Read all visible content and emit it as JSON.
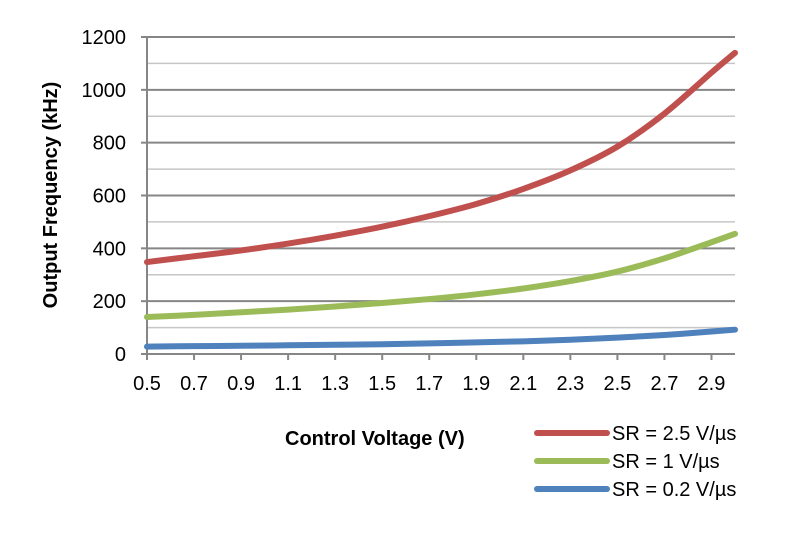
{
  "chart_data": {
    "type": "line",
    "xlabel": "Control Voltage (V)",
    "ylabel": "Output Frequency (kHz)",
    "xlim": [
      0.5,
      3.0
    ],
    "ylim": [
      0,
      1200
    ],
    "x_ticks": [
      "0.5",
      "0.7",
      "0.9",
      "1.1",
      "1.3",
      "1.5",
      "1.7",
      "1.9",
      "2.1",
      "2.3",
      "2.5",
      "2.7",
      "2.9"
    ],
    "y_ticks": [
      "0",
      "200",
      "400",
      "600",
      "800",
      "1000",
      "1200"
    ],
    "grid": true,
    "legend_position": "bottom-right",
    "series": [
      {
        "name": "SR = 2.5 V/µs",
        "color": "#c0504d",
        "x": [
          0.5,
          0.7,
          0.9,
          1.1,
          1.3,
          1.5,
          1.7,
          1.9,
          2.1,
          2.3,
          2.5,
          2.7,
          2.9,
          3.0
        ],
        "y": [
          348,
          370,
          392,
          418,
          448,
          482,
          522,
          568,
          625,
          695,
          785,
          910,
          1065,
          1140
        ]
      },
      {
        "name": "SR = 1 V/µs",
        "color": "#9bbb59",
        "x": [
          0.5,
          0.7,
          0.9,
          1.1,
          1.3,
          1.5,
          1.7,
          1.9,
          2.1,
          2.3,
          2.5,
          2.7,
          2.9,
          3.0
        ],
        "y": [
          140,
          148,
          158,
          168,
          180,
          193,
          208,
          226,
          248,
          276,
          312,
          362,
          423,
          455
        ]
      },
      {
        "name": "SR = 0.2 V/µs",
        "color": "#4f81bd",
        "x": [
          0.5,
          0.7,
          0.9,
          1.1,
          1.3,
          1.5,
          1.7,
          1.9,
          2.1,
          2.3,
          2.5,
          2.7,
          2.9,
          3.0
        ],
        "y": [
          28,
          30,
          31,
          33,
          35,
          37,
          40,
          44,
          48,
          54,
          62,
          72,
          85,
          92
        ]
      }
    ]
  }
}
